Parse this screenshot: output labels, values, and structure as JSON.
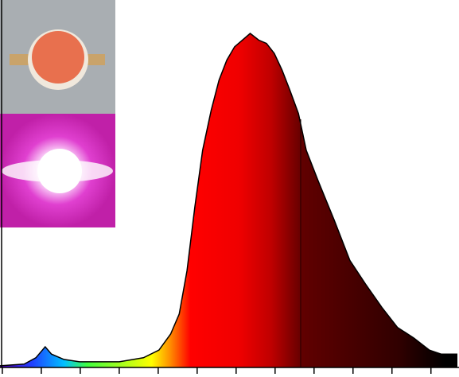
{
  "chart_data": {
    "type": "area",
    "x": [
      397,
      428,
      443,
      455,
      463,
      479,
      499,
      550,
      581,
      601,
      616,
      627,
      637,
      647,
      657,
      668,
      678,
      688,
      698,
      708,
      718,
      729,
      739,
      749,
      759,
      769,
      780,
      790,
      805,
      826,
      846,
      866,
      887,
      907,
      928,
      948,
      963,
      984
    ],
    "values": [
      0.005,
      0.01,
      0.029,
      0.062,
      0.04,
      0.024,
      0.017,
      0.017,
      0.029,
      0.052,
      0.1,
      0.16,
      0.29,
      0.48,
      0.65,
      0.77,
      0.86,
      0.92,
      0.96,
      0.98,
      1.0,
      0.98,
      0.97,
      0.94,
      0.89,
      0.83,
      0.76,
      0.65,
      0.56,
      0.44,
      0.32,
      0.25,
      0.18,
      0.12,
      0.088,
      0.052,
      0.04,
      0.04
    ],
    "color": "#000000",
    "xlim": [
      397,
      986
    ],
    "xticks": [
      400,
      450,
      500,
      550,
      600,
      650,
      700,
      750,
      800,
      850,
      900,
      950
    ],
    "ylim": [
      0,
      1.1
    ]
  }
}
